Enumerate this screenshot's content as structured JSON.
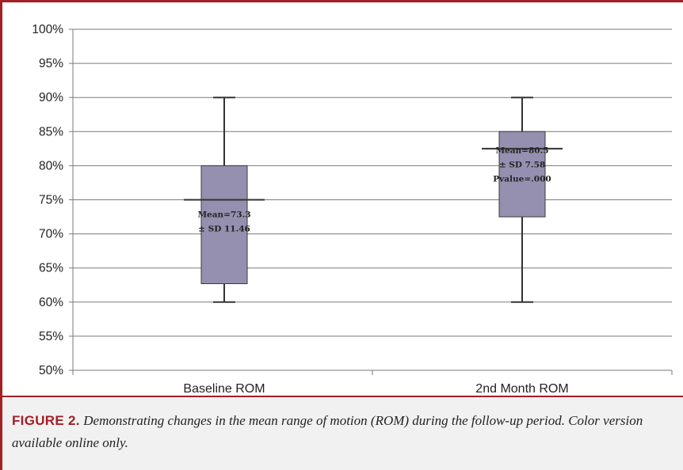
{
  "chart_data": {
    "type": "box",
    "title": "",
    "xlabel": "",
    "ylabel": "",
    "ylim": [
      50,
      100
    ],
    "ytick_step": 5,
    "ytick_suffix": "%",
    "grid": true,
    "categories": [
      "Baseline ROM",
      "2nd Month ROM"
    ],
    "boxes": [
      {
        "category": "Baseline ROM",
        "whisker_low": 60,
        "q1": 62.7,
        "median": 75,
        "q3": 80,
        "whisker_high": 90,
        "annotation": [
          "Mean=73.3",
          "± SD 11.46"
        ]
      },
      {
        "category": "2nd Month ROM",
        "whisker_low": 60,
        "q1": 72.5,
        "median": 82.5,
        "q3": 85,
        "whisker_high": 90,
        "annotation": [
          "Mean=80.5",
          "± SD 7.58",
          "Pvalue=.000"
        ]
      }
    ],
    "colors": {
      "box_fill": "#9590b0",
      "box_edge": "#3a3a3a",
      "grid": "#7a7a7a",
      "line": "#333333"
    }
  },
  "caption": {
    "label": "FIGURE 2.",
    "text": "Demonstrating changes in the mean range of motion (ROM) during the follow-up period. Color version available online only."
  },
  "colors": {
    "frame": "#a31f27",
    "caption_bg": "#f1f1f1"
  }
}
